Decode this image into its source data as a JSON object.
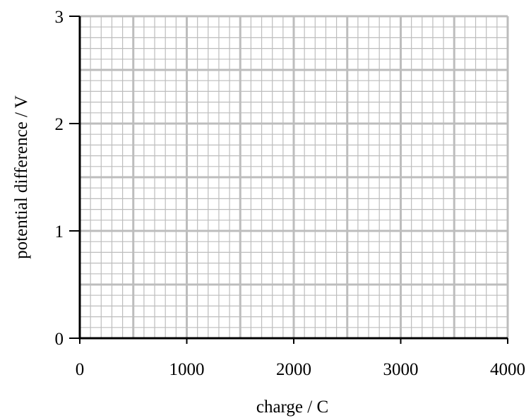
{
  "chart_data": {
    "type": "line",
    "title": "",
    "xlabel": "charge / C",
    "ylabel": "potential difference / V",
    "xlim": [
      0,
      4000
    ],
    "ylim": [
      0,
      3
    ],
    "x_ticks": [
      0,
      1000,
      2000,
      3000,
      4000
    ],
    "x_tick_labels": [
      "0",
      "1000",
      "2000",
      "3000",
      "4000"
    ],
    "y_ticks": [
      0,
      1,
      2,
      3
    ],
    "y_tick_labels": [
      "0",
      "1",
      "2",
      "3"
    ],
    "grid": true,
    "grid_major_x_step": 500,
    "grid_major_y_step": 0.5,
    "grid_minor_x_step": 100,
    "grid_minor_y_step": 0.1,
    "series": [],
    "colors": {
      "grid": "#bdbdbd",
      "axis": "#000000"
    }
  }
}
